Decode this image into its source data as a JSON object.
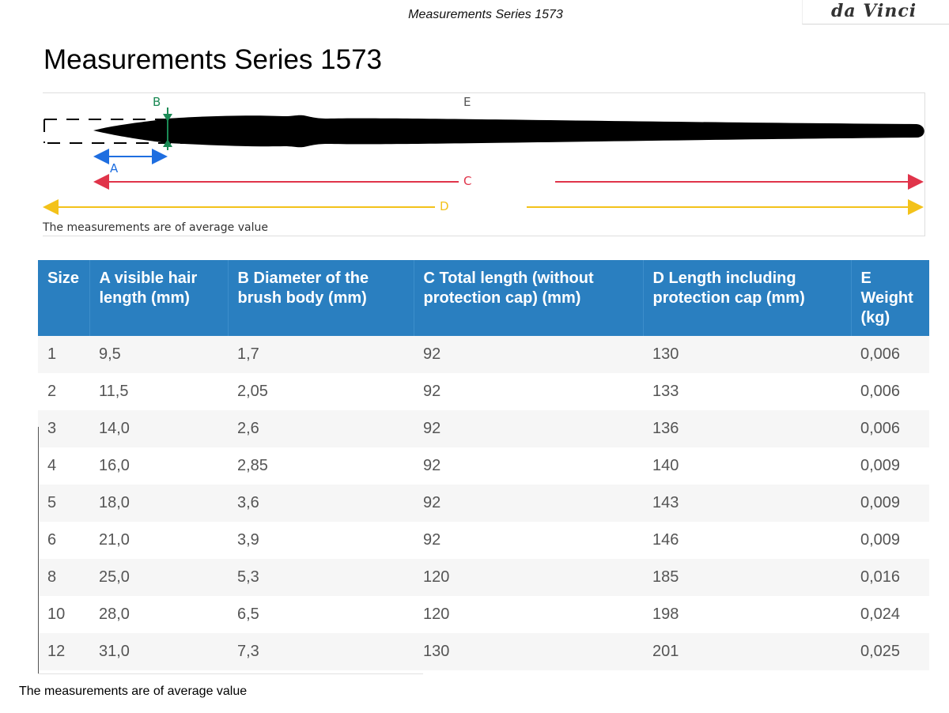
{
  "header": {
    "title": "Measurements Series 1573",
    "logo_text": "da Vinci"
  },
  "page_title": "Measurements Series 1573",
  "diagram": {
    "labels": {
      "a": "A",
      "b": "B",
      "c": "C",
      "d": "D",
      "e": "E"
    },
    "note": "The measurements are of average value",
    "colors": {
      "a": "#1e6ee0",
      "b": "#1b8a55",
      "c": "#e0344a",
      "d": "#f3c21a",
      "brush": "#000000"
    }
  },
  "table": {
    "headers": [
      "Size",
      "A visible hair length (mm)",
      "B Diameter of the brush body (mm)",
      "C Total length (without protection cap) (mm)",
      "D Length including protection cap (mm)",
      "E Weight (kg)"
    ],
    "rows": [
      [
        "1",
        "9,5",
        "1,7",
        "92",
        "130",
        "0,006"
      ],
      [
        "2",
        "11,5",
        "2,05",
        "92",
        "133",
        "0,006"
      ],
      [
        "3",
        "14,0",
        "2,6",
        "92",
        "136",
        "0,006"
      ],
      [
        "4",
        "16,0",
        "2,85",
        "92",
        "140",
        "0,009"
      ],
      [
        "5",
        "18,0",
        "3,6",
        "92",
        "143",
        "0,009"
      ],
      [
        "6",
        "21,0",
        "3,9",
        "92",
        "146",
        "0,009"
      ],
      [
        "8",
        "25,0",
        "5,3",
        "120",
        "185",
        "0,016"
      ],
      [
        "10",
        "28,0",
        "6,5",
        "120",
        "198",
        "0,024"
      ],
      [
        "12",
        "31,0",
        "7,3",
        "130",
        "201",
        "0,025"
      ]
    ],
    "header_color": "#2a7fc0"
  },
  "footer_note": "The measurements are of average value"
}
